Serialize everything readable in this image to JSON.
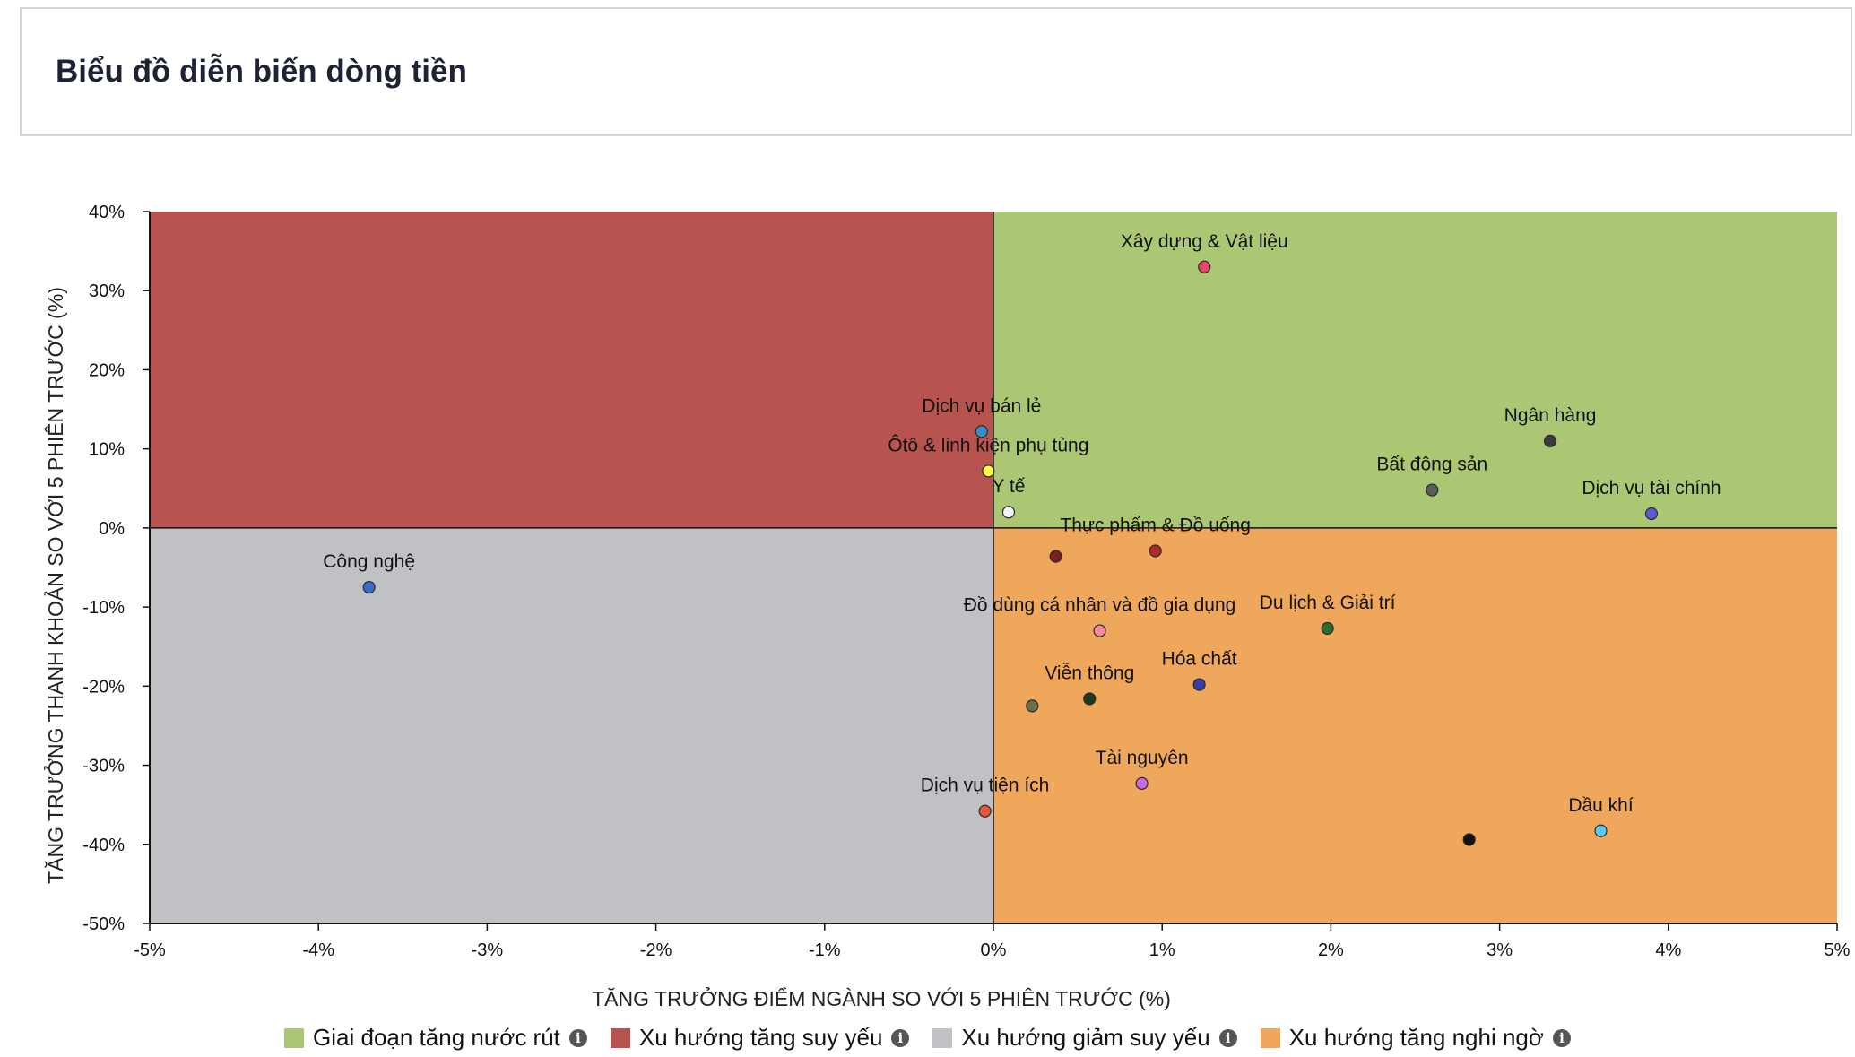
{
  "header": {
    "title": "Biểu đồ diễn biến dòng tiền"
  },
  "chart_data": {
    "type": "scatter",
    "xlabel": "TĂNG TRƯỞNG ĐIỂM NGÀNH SO VỚI 5 PHIÊN TRƯỚC (%)",
    "ylabel": "TĂNG TRƯỞNG THANH KHOẢN SO VỚI 5 PHIÊN TRƯỚC (%)",
    "xlim": [
      -5,
      5
    ],
    "ylim": [
      -50,
      40
    ],
    "xticks": [
      -5,
      -4,
      -3,
      -2,
      -1,
      0,
      1,
      2,
      3,
      4,
      5
    ],
    "yticks": [
      -50,
      -40,
      -30,
      -20,
      -10,
      0,
      10,
      20,
      30,
      40
    ],
    "xtick_labels": [
      "-5%",
      "-4%",
      "-3%",
      "-2%",
      "-1%",
      "0%",
      "1%",
      "2%",
      "3%",
      "4%",
      "5%"
    ],
    "ytick_labels": [
      "-50%",
      "-40%",
      "-30%",
      "-20%",
      "-10%",
      "0%",
      "10%",
      "20%",
      "30%",
      "40%"
    ],
    "quadrants": [
      {
        "name": "Giai đoạn tăng nước rút",
        "x_range": [
          0,
          5
        ],
        "y_range": [
          0,
          40
        ],
        "color": "#abc773"
      },
      {
        "name": "Xu hướng tăng suy yếu",
        "x_range": [
          -5,
          0
        ],
        "y_range": [
          0,
          40
        ],
        "color": "#b85450"
      },
      {
        "name": "Xu hướng giảm suy yếu",
        "x_range": [
          -5,
          0
        ],
        "y_range": [
          -50,
          0
        ],
        "color": "#c0c1c5"
      },
      {
        "name": "Xu hướng tăng nghi ngờ",
        "x_range": [
          0,
          5
        ],
        "y_range": [
          -50,
          0
        ],
        "color": "#efa75b"
      }
    ],
    "points": [
      {
        "label": "Xây dựng & Vật liệu",
        "x": 1.25,
        "y": 33.0,
        "color": "#e84a6b"
      },
      {
        "label": "Ngân hàng",
        "x": 3.3,
        "y": 11.0,
        "color": "#3a3a3a"
      },
      {
        "label": "Bất động sản",
        "x": 2.6,
        "y": 4.8,
        "color": "#5c5c5c"
      },
      {
        "label": "Dịch vụ tài chính",
        "x": 3.9,
        "y": 1.8,
        "color": "#5a5ad6"
      },
      {
        "label": "Dịch vụ bán lẻ",
        "x": -0.07,
        "y": 12.2,
        "color": "#3a8fc2"
      },
      {
        "label": "Ôtô & linh kiện phụ tùng",
        "x": -0.03,
        "y": 7.2,
        "color": "#ffff44"
      },
      {
        "label": "Y tế",
        "x": 0.09,
        "y": 2.0,
        "color": "#f3f3f3"
      },
      {
        "label": "Thực phẩm & Đồ uống",
        "x": 0.96,
        "y": -2.9,
        "color": "#b02a2a"
      },
      {
        "label": "",
        "x": 0.37,
        "y": -3.6,
        "color": "#7a2020"
      },
      {
        "label": "Công nghệ",
        "x": -3.7,
        "y": -7.5,
        "color": "#3a6ac8"
      },
      {
        "label": "Đồ dùng cá nhân và đồ gia dụng",
        "x": 0.63,
        "y": -13.0,
        "color": "#f58a9a"
      },
      {
        "label": "Du lịch & Giải trí",
        "x": 1.98,
        "y": -12.7,
        "color": "#2f6a2f"
      },
      {
        "label": "Hóa chất",
        "x": 1.22,
        "y": -19.8,
        "color": "#3a3aa8"
      },
      {
        "label": "Viễn thông",
        "x": 0.57,
        "y": -21.6,
        "color": "#1e3a1e"
      },
      {
        "label": "",
        "x": 0.23,
        "y": -22.5,
        "color": "#6e6e4a"
      },
      {
        "label": "Tài nguyên",
        "x": 0.88,
        "y": -32.3,
        "color": "#c96ae8"
      },
      {
        "label": "Dịch vụ tiện ích",
        "x": -0.05,
        "y": -35.8,
        "color": "#e8553a"
      },
      {
        "label": "Dầu khí",
        "x": 3.6,
        "y": -38.3,
        "color": "#5fc8f0"
      },
      {
        "label": "",
        "x": 2.82,
        "y": -39.4,
        "color": "#111111"
      }
    ]
  }
}
